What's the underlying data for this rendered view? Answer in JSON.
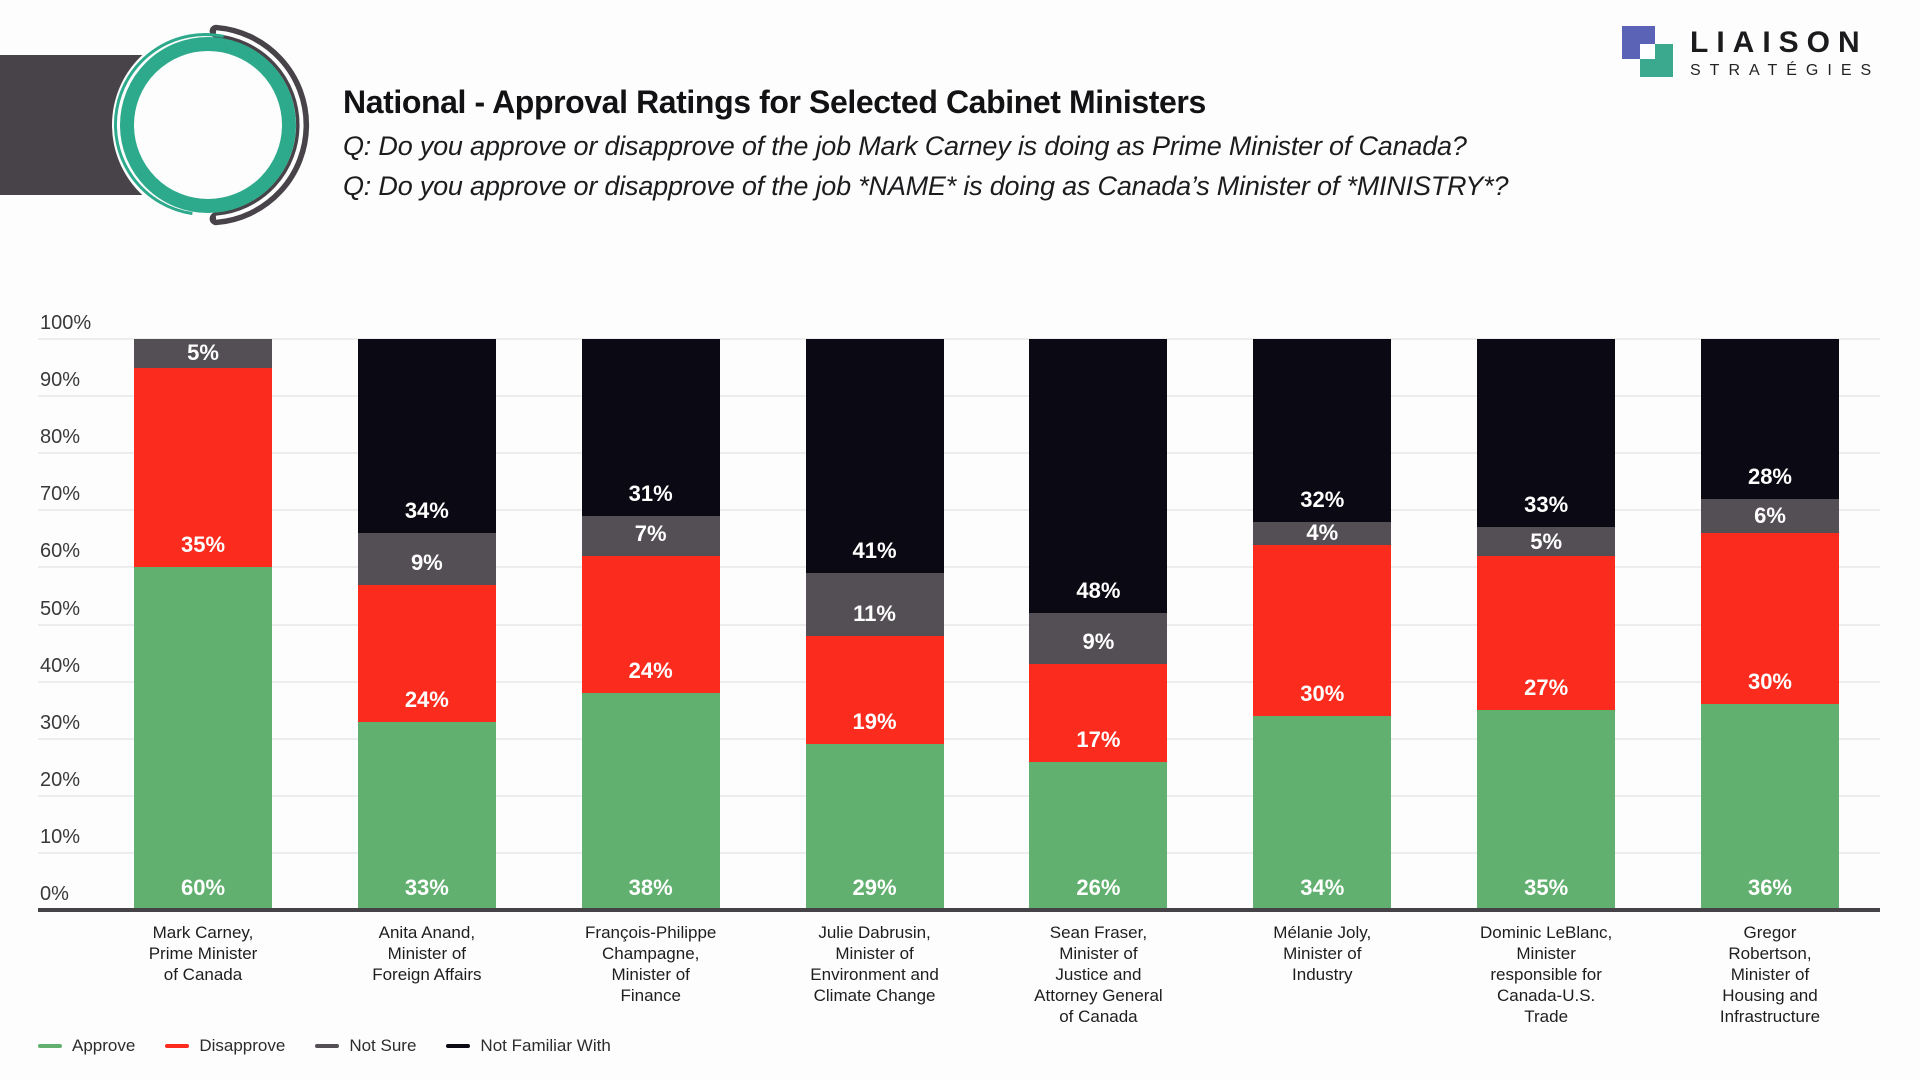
{
  "header": {
    "title": "National - Approval Ratings for Selected Cabinet Ministers",
    "question1": "Q: Do you approve or disapprove of the job Mark Carney is doing as Prime Minister of Canada?",
    "question2": "Q: Do you approve or disapprove of the job *NAME* is doing as Canada’s Minister of *MINISTRY*?"
  },
  "brand": {
    "name": "LIAISON",
    "subname": "STRATÉGIES",
    "colors": {
      "blue_square": "#5a63b5",
      "teal_square": "#3aa98d",
      "mark_dark": "#474349",
      "mark_teal": "#2da98c"
    }
  },
  "chart_data": {
    "type": "bar",
    "stacked": true,
    "unit": "%",
    "ylim": [
      0,
      100
    ],
    "yticks": [
      0,
      10,
      20,
      30,
      40,
      50,
      60,
      70,
      80,
      90,
      100
    ],
    "grid": true,
    "legend_position": "bottom-left",
    "series": [
      {
        "key": "approve",
        "name": "Approve",
        "color": "#62b06f"
      },
      {
        "key": "disapprove",
        "name": "Disapprove",
        "color": "#fb2b1e"
      },
      {
        "key": "not_sure",
        "name": "Not Sure",
        "color": "#544f55"
      },
      {
        "key": "not_familiar",
        "name": "Not Familiar With",
        "color": "#0b0913"
      }
    ],
    "categories": [
      {
        "label_lines": [
          "Mark Carney,",
          "Prime Minister",
          "of Canada"
        ],
        "values": {
          "approve": 60,
          "disapprove": 35,
          "not_sure": 5,
          "not_familiar": 0
        }
      },
      {
        "label_lines": [
          "Anita Anand,",
          "Minister of",
          "Foreign Affairs"
        ],
        "values": {
          "approve": 33,
          "disapprove": 24,
          "not_sure": 9,
          "not_familiar": 34
        }
      },
      {
        "label_lines": [
          "François-Philippe",
          "Champagne,",
          "Minister of",
          "Finance"
        ],
        "values": {
          "approve": 38,
          "disapprove": 24,
          "not_sure": 7,
          "not_familiar": 31
        }
      },
      {
        "label_lines": [
          "Julie Dabrusin,",
          "Minister of",
          "Environment and",
          "Climate Change"
        ],
        "values": {
          "approve": 29,
          "disapprove": 19,
          "not_sure": 11,
          "not_familiar": 41
        }
      },
      {
        "label_lines": [
          "Sean Fraser,",
          "Minister of",
          "Justice and",
          "Attorney General",
          "of Canada"
        ],
        "values": {
          "approve": 26,
          "disapprove": 17,
          "not_sure": 9,
          "not_familiar": 48
        }
      },
      {
        "label_lines": [
          "Mélanie Joly,",
          "Minister of",
          "Industry"
        ],
        "values": {
          "approve": 34,
          "disapprove": 30,
          "not_sure": 4,
          "not_familiar": 32
        }
      },
      {
        "label_lines": [
          "Dominic LeBlanc,",
          "Minister",
          "responsible for",
          "Canada-U.S.",
          "Trade"
        ],
        "values": {
          "approve": 35,
          "disapprove": 27,
          "not_sure": 5,
          "not_familiar": 33
        }
      },
      {
        "label_lines": [
          "Gregor",
          "Robertson,",
          "Minister of",
          "Housing and",
          "Infrastructure"
        ],
        "values": {
          "approve": 36,
          "disapprove": 30,
          "not_sure": 6,
          "not_familiar": 28
        }
      }
    ]
  }
}
